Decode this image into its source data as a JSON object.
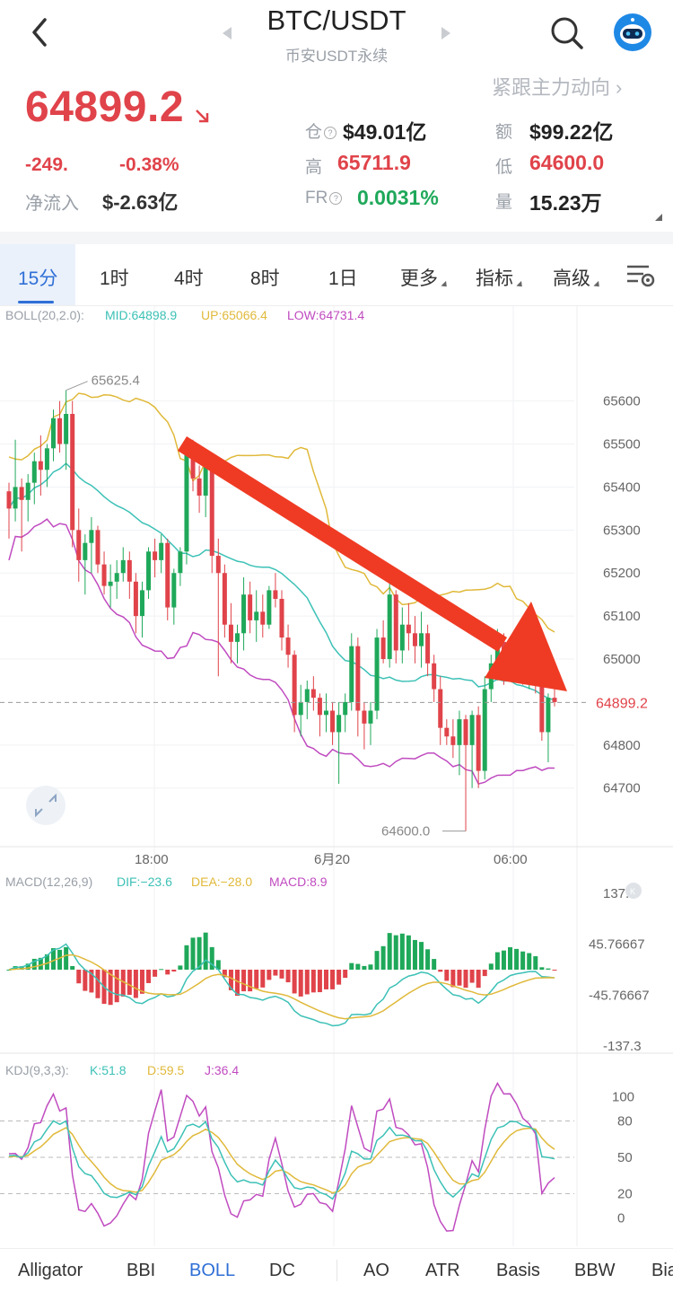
{
  "header": {
    "pair": "BTC/USDT",
    "subtitle": "币安USDT永续",
    "follow_link": "紧跟主力动向",
    "price": "64899.2",
    "change": "-249.",
    "change_pct": "-0.38%",
    "netflow_label": "净流入",
    "netflow_value": "$-2.63亿",
    "oi_label": "仓",
    "oi_value": "$49.01亿",
    "high_label": "高",
    "high_value": "65711.9",
    "fr_label": "FR",
    "fr_value": "0.0031%",
    "amount_label": "额",
    "amount_value": "$99.22亿",
    "low_label": "低",
    "low_value": "64600.0",
    "volume_label": "量",
    "volume_value": "15.23万"
  },
  "tabs": [
    "15分",
    "1时",
    "4时",
    "8时",
    "1日",
    "更多",
    "指标",
    "高级"
  ],
  "active_tab": "15分",
  "indicators": {
    "boll_name": "BOLL(20,2.0):",
    "boll_mid": "MID:64898.9",
    "boll_up": "UP:65066.4",
    "boll_low": "LOW:64731.4",
    "macd_name": "MACD(12,26,9)",
    "macd_dif": "DIF:−23.6",
    "macd_dea": "DEA:−28.0",
    "macd_macd": "MACD:8.9",
    "kdj_name": "KDJ(9,3,3):",
    "kdj_k": "K:51.8",
    "kdj_d": "D:59.5",
    "kdj_j": "J:36.4"
  },
  "chart_data": [
    {
      "type": "candlestick",
      "title": "BTC/USDT 15分",
      "y_ticks": [
        "65600",
        "65500",
        "65400",
        "65300",
        "65200",
        "65100",
        "65000",
        "64800",
        "64700"
      ],
      "x_ticks": [
        "18:00",
        "6月20",
        "06:00"
      ],
      "current_price_label": "64899.2",
      "high_marker": "65625.4",
      "low_marker": "64600.0",
      "ylim": [
        64570,
        65760
      ],
      "candles": [
        [
          65390,
          65410,
          65280,
          65350
        ],
        [
          65350,
          65510,
          65320,
          65400
        ],
        [
          65400,
          65420,
          65250,
          65370
        ],
        [
          65370,
          65430,
          65320,
          65410
        ],
        [
          65410,
          65480,
          65360,
          65460
        ],
        [
          65460,
          65520,
          65380,
          65440
        ],
        [
          65440,
          65500,
          65400,
          65490
        ],
        [
          65490,
          65580,
          65460,
          65560
        ],
        [
          65560,
          65600,
          65480,
          65500
        ],
        [
          65500,
          65625,
          65440,
          65570
        ],
        [
          65570,
          65600,
          65260,
          65300
        ],
        [
          65300,
          65350,
          65180,
          65230
        ],
        [
          65230,
          65290,
          65150,
          65270
        ],
        [
          65270,
          65330,
          65200,
          65300
        ],
        [
          65300,
          65310,
          65200,
          65220
        ],
        [
          65220,
          65250,
          65150,
          65170
        ],
        [
          65170,
          65220,
          65120,
          65180
        ],
        [
          65180,
          65230,
          65140,
          65200
        ],
        [
          65200,
          65260,
          65180,
          65230
        ],
        [
          65230,
          65250,
          65140,
          65180
        ],
        [
          65180,
          65200,
          65060,
          65100
        ],
        [
          65100,
          65180,
          65050,
          65160
        ],
        [
          65160,
          65260,
          65140,
          65250
        ],
        [
          65250,
          65280,
          65190,
          65230
        ],
        [
          65230,
          65290,
          65200,
          65270
        ],
        [
          65270,
          65280,
          65090,
          65120
        ],
        [
          65120,
          65210,
          65080,
          65200
        ],
        [
          65200,
          65260,
          65170,
          65250
        ],
        [
          65250,
          65500,
          65220,
          65480
        ],
        [
          65480,
          65510,
          65390,
          65420
        ],
        [
          65420,
          65450,
          65340,
          65380
        ],
        [
          65380,
          65470,
          65330,
          65460
        ],
        [
          65460,
          65480,
          65200,
          65240
        ],
        [
          65240,
          65280,
          64960,
          65200
        ],
        [
          65200,
          65220,
          65050,
          65080
        ],
        [
          65080,
          65130,
          64990,
          65040
        ],
        [
          65040,
          65080,
          64990,
          65060
        ],
        [
          65060,
          65190,
          65020,
          65150
        ],
        [
          65150,
          65180,
          65060,
          65090
        ],
        [
          65090,
          65160,
          65040,
          65110
        ],
        [
          65110,
          65150,
          65050,
          65080
        ],
        [
          65080,
          65170,
          65070,
          65160
        ],
        [
          65160,
          65200,
          65120,
          65140
        ],
        [
          65140,
          65160,
          65020,
          65050
        ],
        [
          65050,
          65080,
          64980,
          65010
        ],
        [
          65010,
          65020,
          64830,
          64870
        ],
        [
          64870,
          64940,
          64820,
          64900
        ],
        [
          64900,
          64950,
          64860,
          64930
        ],
        [
          64930,
          64960,
          64880,
          64910
        ],
        [
          64910,
          64920,
          64820,
          64870
        ],
        [
          64870,
          64920,
          64830,
          64880
        ],
        [
          64880,
          64900,
          64800,
          64830
        ],
        [
          64830,
          64900,
          64710,
          64870
        ],
        [
          64870,
          64920,
          64830,
          64900
        ],
        [
          64900,
          65060,
          64880,
          65030
        ],
        [
          65030,
          65050,
          64820,
          64880
        ],
        [
          64880,
          64900,
          64790,
          64850
        ],
        [
          64850,
          64900,
          64800,
          64880
        ],
        [
          64880,
          65070,
          64860,
          65050
        ],
        [
          65050,
          65090,
          64990,
          65000
        ],
        [
          65000,
          65210,
          64980,
          65150
        ],
        [
          65150,
          65160,
          64990,
          65020
        ],
        [
          65020,
          65120,
          64990,
          65080
        ],
        [
          65080,
          65130,
          65020,
          65060
        ],
        [
          65060,
          65100,
          64990,
          65030
        ],
        [
          65030,
          65110,
          64980,
          65060
        ],
        [
          65060,
          65080,
          64960,
          64990
        ],
        [
          64990,
          65010,
          64900,
          64930
        ],
        [
          64930,
          64960,
          64800,
          64840
        ],
        [
          64840,
          64860,
          64800,
          64820
        ],
        [
          64820,
          64860,
          64770,
          64800
        ],
        [
          64800,
          64880,
          64730,
          64860
        ],
        [
          64860,
          64870,
          64600,
          64800
        ],
        [
          64800,
          64880,
          64700,
          64870
        ],
        [
          64870,
          64890,
          64700,
          64740
        ],
        [
          64740,
          64960,
          64720,
          64930
        ],
        [
          64930,
          65010,
          64900,
          64990
        ],
        [
          64990,
          65070,
          64950,
          65040
        ],
        [
          65040,
          65060,
          64940,
          64970
        ],
        [
          64970,
          65030,
          64950,
          65010
        ],
        [
          65010,
          65030,
          64960,
          64970
        ],
        [
          64970,
          64990,
          64940,
          64960
        ],
        [
          64960,
          64990,
          64930,
          64970
        ],
        [
          64970,
          64990,
          64920,
          64950
        ],
        [
          64950,
          64970,
          64810,
          64830
        ],
        [
          64830,
          64920,
          64760,
          64910
        ],
        [
          64910,
          64930,
          64890,
          64900
        ]
      ]
    },
    {
      "type": "bar",
      "title": "MACD(12,26,9)",
      "y_ticks": [
        "137.3",
        "45.76667",
        "-45.76667",
        "-137.3"
      ],
      "ylim": [
        -137.3,
        137.3
      ]
    },
    {
      "type": "line",
      "title": "KDJ(9,3,3)",
      "y_ticks": [
        "100",
        "80",
        "50",
        "20",
        "0"
      ],
      "ylim": [
        -10,
        110
      ]
    }
  ],
  "bottom_tabs": [
    "Alligator",
    "BBI",
    "BOLL",
    "DC",
    "AO",
    "ATR",
    "Basis",
    "BBW",
    "Bia"
  ],
  "active_bottom_tab": "BOLL",
  "colors": {
    "up": "#1fa85a",
    "down": "#e0434a",
    "accent": "#2f6fd6",
    "boll_mid": "#3cc1b6",
    "boll_up": "#e0b93a",
    "boll_low": "#c04bc0"
  }
}
